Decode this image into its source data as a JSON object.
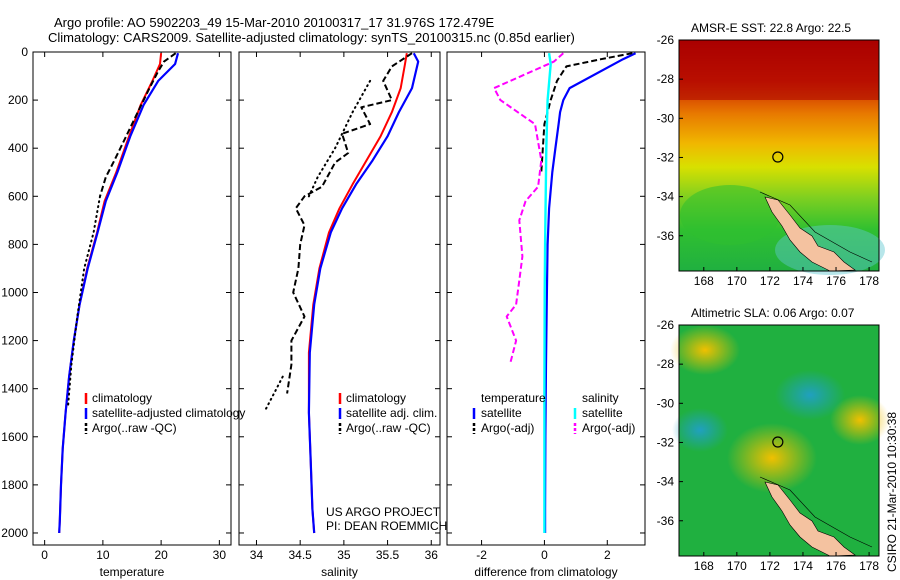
{
  "header": {
    "line1": "Argo profile: AO 5902203_49 15-Mar-2010 20100317_17 31.976S 172.479E",
    "line2": "Climatology: CARS2009. Satellite-adjusted climatology: synTS_20100315.nc (0.85d earlier)"
  },
  "footer": {
    "project": "US ARGO PROJECT",
    "pi": "PI: DEAN ROEMMICH",
    "csiro": "CSIRO 21-Mar-2010 10:30:38"
  },
  "colors": {
    "climatology": "#ff0000",
    "satellite": "#0000ff",
    "argo": "#000000",
    "salinity_satellite": "#00ffff",
    "salinity_argo": "#ff00ff",
    "land": "#f4c2a0"
  },
  "chart_data": [
    {
      "id": "temperature",
      "type": "line",
      "xlabel": "temperature",
      "ylabel": "",
      "xlim": [
        -2,
        32
      ],
      "ylim": [
        2050,
        0
      ],
      "xticks": [
        0,
        10,
        20,
        30
      ],
      "yticks": [
        0,
        200,
        400,
        600,
        800,
        1000,
        1200,
        1400,
        1600,
        1800,
        2000
      ],
      "legend": [
        "climatology",
        "satellite-adjusted climatology",
        "Argo(..raw -QC)"
      ],
      "series": [
        {
          "name": "climatology",
          "style": "red",
          "x": [
            20.0,
            19.8,
            18.5,
            16.5,
            14.5,
            12.3,
            10.3,
            9.0,
            7.3,
            6.0,
            5.0,
            4.2,
            3.6,
            3.1,
            2.8,
            2.6,
            2.5
          ],
          "y": [
            5,
            50,
            120,
            220,
            350,
            500,
            620,
            750,
            900,
            1050,
            1200,
            1350,
            1500,
            1650,
            1800,
            1950,
            2000
          ]
        },
        {
          "name": "satellite-adjusted climatology",
          "style": "blue",
          "x": [
            22.9,
            22.4,
            19.5,
            17.0,
            14.7,
            12.5,
            10.5,
            9.1,
            7.4,
            6.0,
            5.0,
            4.2,
            3.6,
            3.1,
            2.8,
            2.6,
            2.5
          ],
          "y": [
            5,
            50,
            120,
            220,
            350,
            500,
            620,
            750,
            900,
            1050,
            1200,
            1350,
            1500,
            1650,
            1800,
            1950,
            2000
          ]
        },
        {
          "name": "Argo(..raw -QC)",
          "style": "black-dash",
          "x": [
            22.5,
            20.5,
            19.5,
            18.0,
            16.0,
            14.0,
            12.0,
            10.5,
            9.5
          ],
          "y": [
            5,
            40,
            80,
            150,
            250,
            350,
            450,
            520,
            600
          ]
        },
        {
          "name": "Argo(..raw -QC) dotted",
          "style": "black-dot",
          "x": [
            9.5,
            8.4,
            6.8,
            5.6,
            4.6,
            4.0
          ],
          "y": [
            600,
            750,
            900,
            1100,
            1300,
            1480
          ]
        }
      ]
    },
    {
      "id": "salinity",
      "type": "line",
      "xlabel": "salinity",
      "ylabel": "",
      "xlim": [
        33.8,
        36.1
      ],
      "ylim": [
        2050,
        0
      ],
      "xticks": [
        34,
        34.5,
        35,
        35.5,
        36
      ],
      "yticks": [],
      "legend": [
        "climatology",
        "satellite adj. clim.",
        "Argo(..raw -QC)"
      ],
      "series": [
        {
          "name": "climatology",
          "style": "red",
          "x": [
            35.72,
            35.7,
            35.65,
            35.55,
            35.42,
            35.26,
            35.1,
            34.95,
            34.83,
            34.72,
            34.65,
            34.6,
            34.6,
            34.62,
            34.64,
            34.66
          ],
          "y": [
            5,
            50,
            150,
            250,
            350,
            450,
            550,
            650,
            750,
            900,
            1050,
            1250,
            1500,
            1700,
            1900,
            2000
          ]
        },
        {
          "name": "satellite adj. clim.",
          "style": "blue",
          "x": [
            35.8,
            35.85,
            35.78,
            35.63,
            35.5,
            35.33,
            35.14,
            34.98,
            34.85,
            34.73,
            34.66,
            34.61,
            34.6,
            34.62,
            34.64,
            34.66
          ],
          "y": [
            5,
            40,
            150,
            250,
            350,
            450,
            550,
            650,
            750,
            900,
            1050,
            1250,
            1500,
            1700,
            1900,
            2000
          ]
        },
        {
          "name": "Argo(..raw -QC)",
          "style": "black-dash",
          "x": [
            35.78,
            35.55,
            35.45,
            35.55,
            35.2,
            35.3,
            34.98,
            35.05,
            34.9,
            34.75,
            34.55,
            34.45,
            34.55,
            34.5,
            34.48,
            34.42,
            34.55,
            34.4,
            34.4,
            34.35
          ],
          "y": [
            5,
            60,
            120,
            200,
            230,
            300,
            340,
            420,
            460,
            560,
            600,
            650,
            720,
            800,
            900,
            1000,
            1100,
            1200,
            1300,
            1420
          ]
        },
        {
          "name": "Argo dotted",
          "style": "black-dot",
          "x": [
            35.3,
            35.1,
            34.9,
            34.7,
            34.6
          ],
          "y": [
            120,
            250,
            400,
            520,
            600
          ]
        },
        {
          "name": "Argo dotted deep",
          "style": "black-dot",
          "x": [
            34.3,
            34.2,
            34.1
          ],
          "y": [
            1350,
            1420,
            1490
          ]
        }
      ]
    },
    {
      "id": "difference",
      "type": "line",
      "xlabel": "difference from climatology",
      "ylabel": "",
      "xlim": [
        -3.1,
        3.2
      ],
      "ylim": [
        2050,
        0
      ],
      "xticks": [
        -2,
        0,
        2
      ],
      "yticks": [],
      "legend_temperature": [
        "temperature",
        "satellite",
        "Argo(-adj)"
      ],
      "legend_salinity": [
        "salinity",
        "satellite",
        "Argo(-adj)"
      ],
      "series": [
        {
          "name": "temperature satellite",
          "style": "blue",
          "x": [
            2.9,
            2.5,
            0.8,
            0.6,
            0.5,
            0.45,
            0.35,
            0.25,
            0.15,
            0.1,
            0.08,
            0.05,
            0.03,
            0.02,
            0.02
          ],
          "y": [
            5,
            30,
            150,
            200,
            250,
            300,
            400,
            500,
            650,
            800,
            1000,
            1300,
            1600,
            1900,
            2000
          ]
        },
        {
          "name": "temperature Argo(-adj)",
          "style": "black-dash",
          "x": [
            2.8,
            1.8,
            0.7,
            0.4,
            0.2,
            0.0,
            -0.1
          ],
          "y": [
            5,
            30,
            60,
            120,
            200,
            300,
            500
          ]
        },
        {
          "name": "salinity satellite",
          "style": "cyan",
          "x": [
            0.15,
            0.2,
            0.1,
            0.06,
            0.04,
            0.02,
            0.01,
            0.0,
            0.0,
            0.0
          ],
          "y": [
            5,
            50,
            200,
            400,
            600,
            800,
            1000,
            1400,
            1800,
            2000
          ]
        },
        {
          "name": "salinity Argo(-adj)",
          "style": "magenta-dash",
          "x": [
            0.6,
            0.3,
            -1.6,
            -1.4,
            -0.3,
            -0.1,
            -0.2,
            -0.6,
            -0.8,
            -0.7,
            -0.8,
            -0.9,
            -1.2,
            -0.9,
            -1.0,
            -1.1
          ],
          "y": [
            5,
            40,
            150,
            200,
            300,
            450,
            560,
            620,
            700,
            850,
            950,
            1050,
            1100,
            1200,
            1250,
            1300
          ]
        }
      ]
    },
    {
      "id": "sst_map",
      "type": "heatmap",
      "title": "AMSR-E SST: 22.8 Argo: 22.5",
      "xlim": [
        166.5,
        178.6
      ],
      "ylim": [
        -37.8,
        -26
      ],
      "xticks": [
        168,
        170,
        172,
        174,
        176,
        178
      ],
      "yticks": [
        -26,
        -28,
        -30,
        -32,
        -34,
        -36
      ],
      "marker": {
        "lon": 172.479,
        "lat": -31.976
      }
    },
    {
      "id": "sla_map",
      "type": "heatmap",
      "title": "Altimetric SLA: 0.06 Argo: 0.07",
      "xlim": [
        166.5,
        178.6
      ],
      "ylim": [
        -37.8,
        -26
      ],
      "xticks": [
        168,
        170,
        172,
        174,
        176,
        178
      ],
      "yticks": [
        -26,
        -28,
        -30,
        -32,
        -34,
        -36
      ],
      "marker": {
        "lon": 172.479,
        "lat": -31.976
      }
    }
  ]
}
